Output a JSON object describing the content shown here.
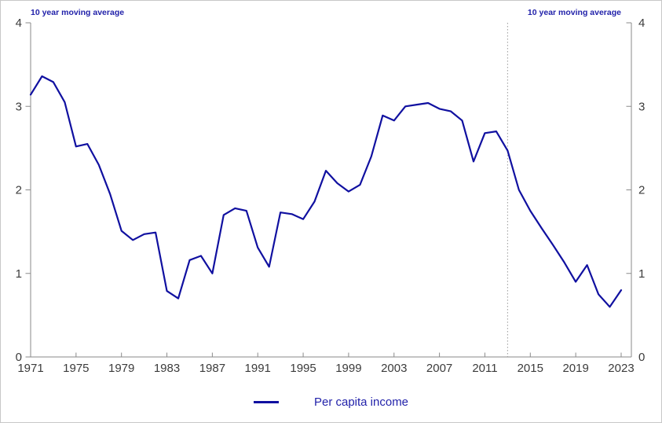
{
  "figure": {
    "top_left_annotation": "10 year moving average",
    "top_right_annotation": "10 year moving average"
  },
  "chart_data": {
    "type": "line",
    "title": "",
    "xlabel": "",
    "ylabel": "10 year moving average",
    "annotations": {
      "top_left": "10 year moving average",
      "top_right": "10 year moving average"
    },
    "x": [
      1971,
      1972,
      1973,
      1974,
      1975,
      1976,
      1977,
      1978,
      1979,
      1980,
      1981,
      1982,
      1983,
      1984,
      1985,
      1986,
      1987,
      1988,
      1989,
      1990,
      1991,
      1992,
      1993,
      1994,
      1995,
      1996,
      1997,
      1998,
      1999,
      2000,
      2001,
      2002,
      2003,
      2004,
      2005,
      2006,
      2007,
      2008,
      2009,
      2010,
      2011,
      2012,
      2013,
      2014,
      2015,
      2016,
      2017,
      2018,
      2019,
      2020,
      2021,
      2022,
      2023
    ],
    "series": [
      {
        "name": "Per capita income",
        "color": "#1010A0",
        "values": [
          3.14,
          3.36,
          3.29,
          3.05,
          2.52,
          2.55,
          2.3,
          1.95,
          1.51,
          1.4,
          1.47,
          1.49,
          0.79,
          0.7,
          1.16,
          1.21,
          1.0,
          1.7,
          1.78,
          1.75,
          1.31,
          1.08,
          1.73,
          1.71,
          1.65,
          1.86,
          2.23,
          2.08,
          1.98,
          2.06,
          2.4,
          2.89,
          2.83,
          3.0,
          3.02,
          3.04,
          2.97,
          2.94,
          2.83,
          2.34,
          2.68,
          2.7,
          2.47,
          2.0,
          1.75,
          1.54,
          1.34,
          1.13,
          0.9,
          1.1,
          0.75,
          0.6,
          0.8
        ]
      }
    ],
    "x_ticks": [
      1971,
      1975,
      1979,
      1983,
      1987,
      1991,
      1995,
      1999,
      2003,
      2007,
      2011,
      2015,
      2019,
      2023
    ],
    "y_ticks": [
      0,
      1,
      2,
      3,
      4
    ],
    "xlim": [
      1971,
      2023.9
    ],
    "ylim": [
      0,
      4
    ],
    "grid": false,
    "dual_y_axis": true,
    "event_line_x": 2013,
    "legend_position": "bottom-center",
    "colors": {
      "line": "#1010A0",
      "axis": "#8a8a8a",
      "tick_label": "#3c3c3c",
      "annotation_text": "#2222AA",
      "event_line": "#999999",
      "background": "#ffffff"
    }
  }
}
